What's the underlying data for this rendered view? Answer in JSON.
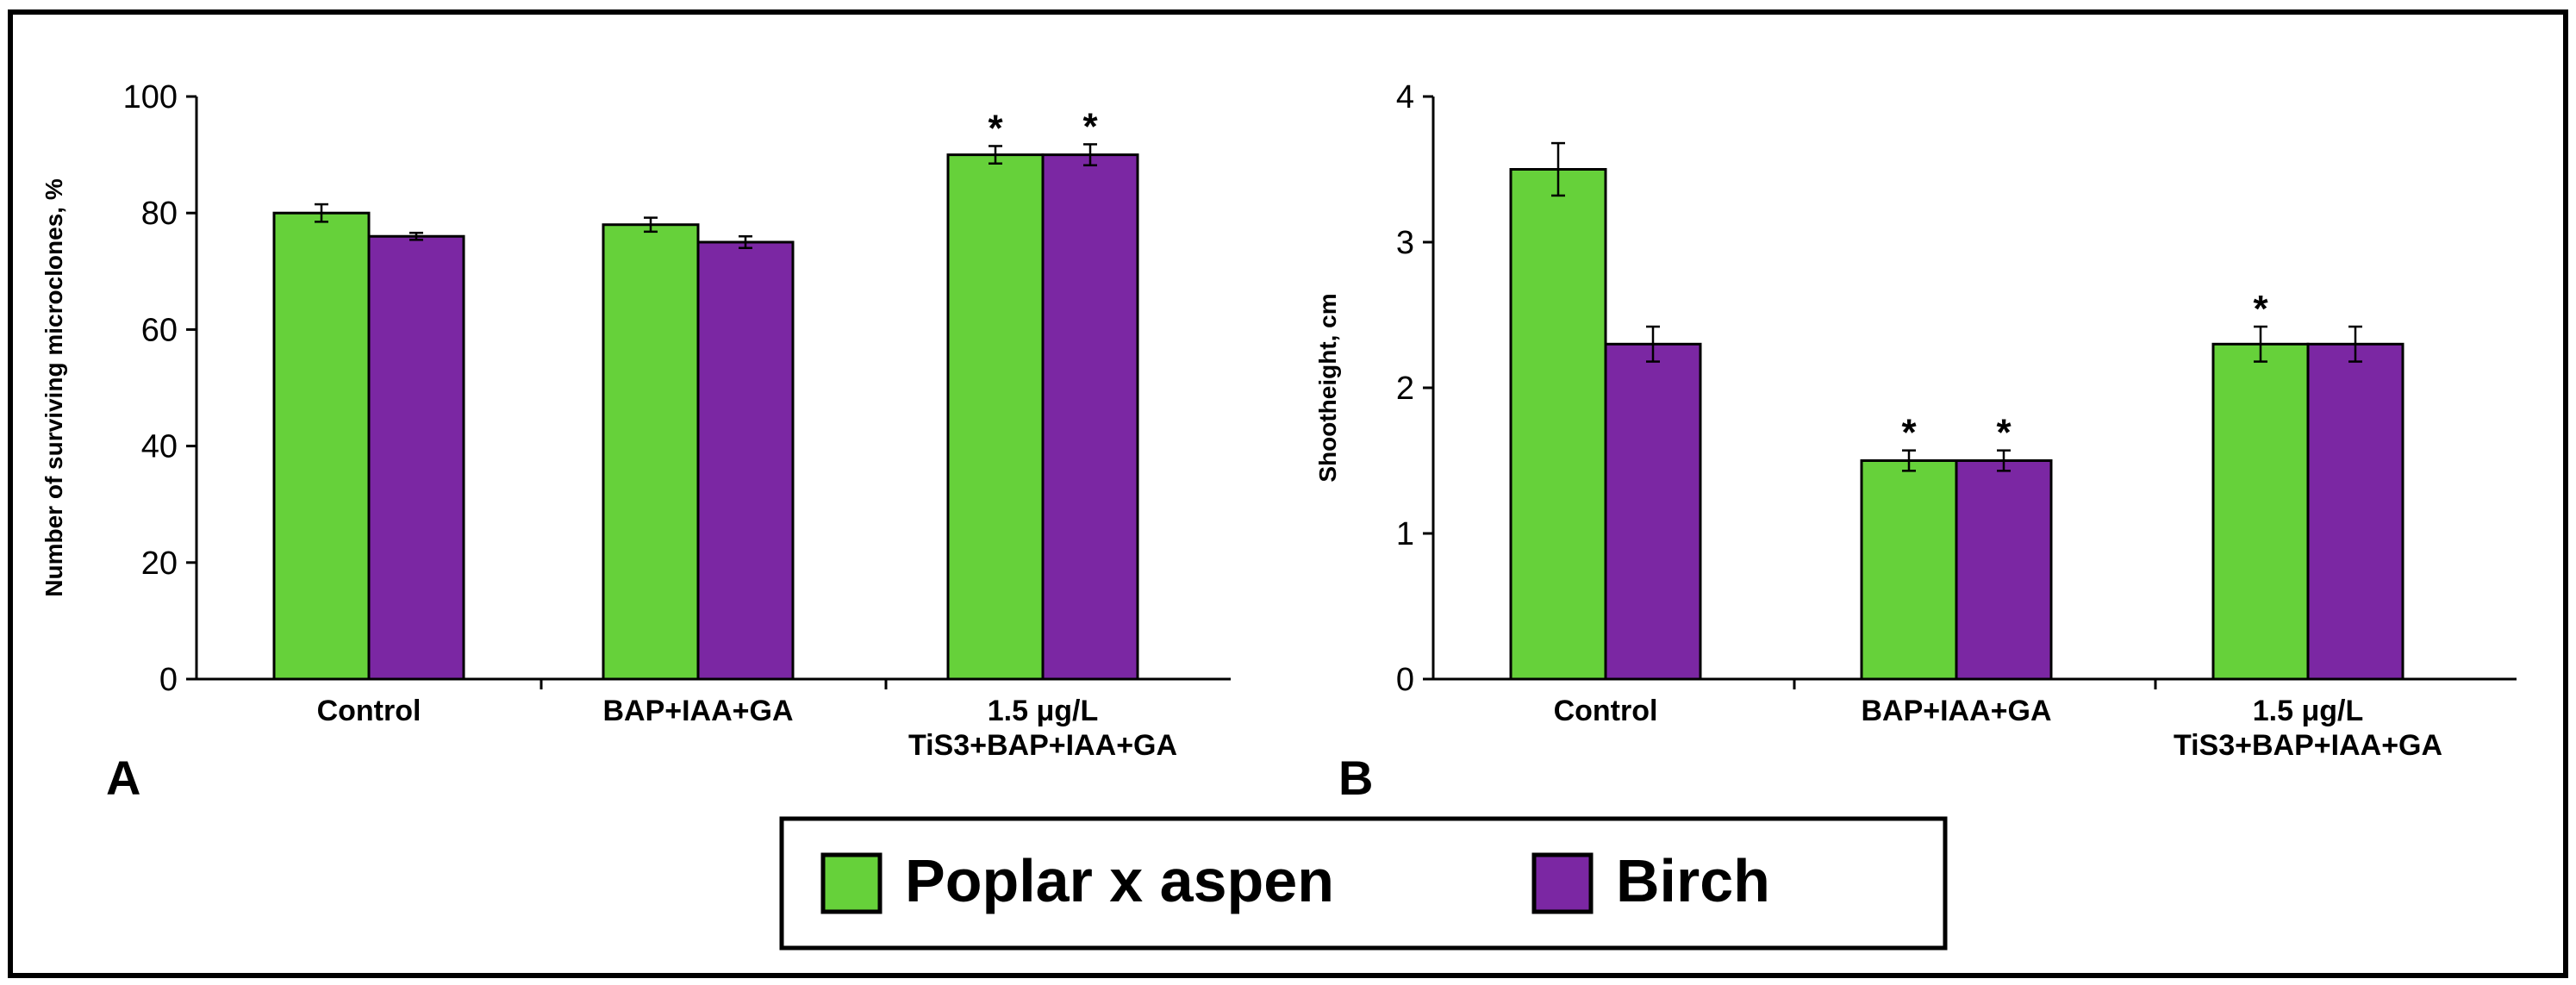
{
  "colors": {
    "poplar": "#66d13a",
    "birch": "#7b27a3",
    "outline": "#000000",
    "background": "#ffffff"
  },
  "legend": {
    "items": [
      {
        "label": "Poplar x aspen",
        "color": "#66d13a"
      },
      {
        "label": "Birch",
        "color": "#7b27a3"
      }
    ]
  },
  "chart_data": [
    {
      "panel_label": "A",
      "type": "bar",
      "ylabel": "Number of surviving microclones, %",
      "xlabel": "",
      "ylim": [
        0,
        100
      ],
      "yticks": [
        0,
        20,
        40,
        60,
        80,
        100
      ],
      "categories": [
        [
          "Control"
        ],
        [
          "BAP+IAA+GA"
        ],
        [
          "1.5 μg/L",
          "TiS3+BAP+IAA+GA"
        ]
      ],
      "series": [
        {
          "name": "Poplar x aspen",
          "color": "#66d13a",
          "values": [
            80,
            78,
            90
          ],
          "errors": [
            1.5,
            1.2,
            1.5
          ],
          "significant": [
            false,
            false,
            true
          ]
        },
        {
          "name": "Birch",
          "color": "#7b27a3",
          "values": [
            76,
            75,
            90
          ],
          "errors": [
            0.6,
            1.0,
            1.8
          ],
          "significant": [
            false,
            false,
            true
          ]
        }
      ],
      "marker": "*"
    },
    {
      "panel_label": "B",
      "type": "bar",
      "ylabel": "Shootheight, cm",
      "xlabel": "",
      "ylim": [
        0,
        4
      ],
      "yticks": [
        0,
        1,
        2,
        3,
        4
      ],
      "categories": [
        [
          "Control"
        ],
        [
          "BAP+IAA+GA"
        ],
        [
          "1.5 μg/L",
          "TiS3+BAP+IAA+GA"
        ]
      ],
      "series": [
        {
          "name": "Poplar x aspen",
          "color": "#66d13a",
          "values": [
            3.5,
            1.5,
            2.3
          ],
          "errors": [
            0.18,
            0.07,
            0.12
          ],
          "significant": [
            false,
            true,
            true
          ]
        },
        {
          "name": "Birch",
          "color": "#7b27a3",
          "values": [
            2.3,
            1.5,
            2.3
          ],
          "errors": [
            0.12,
            0.07,
            0.12
          ],
          "significant": [
            false,
            true,
            false
          ]
        }
      ],
      "marker": "*"
    }
  ]
}
